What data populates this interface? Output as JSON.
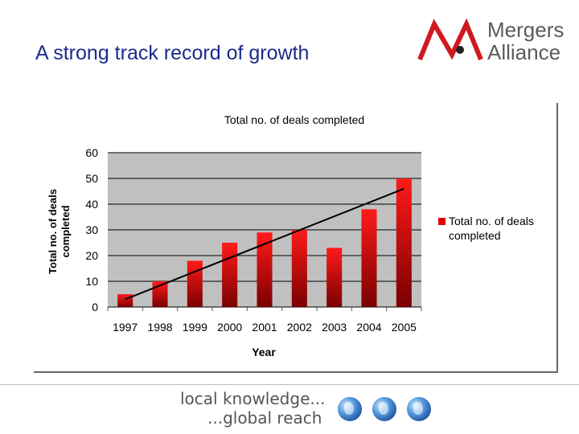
{
  "slide": {
    "title": "A strong track record of growth"
  },
  "logo": {
    "line1": "Mergers",
    "line2": "Alliance"
  },
  "footer": {
    "line1": "local knowledge...",
    "line2": "...global reach",
    "globe_icons": [
      "globe-europe-icon",
      "globe-americas-icon",
      "globe-asia-icon"
    ]
  },
  "colors": {
    "title": "#1c2b8c",
    "bar_top": "#ff1a1a",
    "bar_bottom": "#7a0000",
    "plot_bg": "#c0c0c0",
    "logo_red": "#d0191f"
  },
  "chart_data": {
    "type": "bar",
    "title": "Total no. of deals completed",
    "xlabel": "Year",
    "ylabel": "Total no. of deals completed",
    "ylabel_lines": [
      "Total no. of deals",
      "completed"
    ],
    "categories": [
      "1997",
      "1998",
      "1999",
      "2000",
      "2001",
      "2002",
      "2003",
      "2004",
      "2005"
    ],
    "series": [
      {
        "name": "Total no. of deals completed",
        "values": [
          5,
          10,
          18,
          25,
          29,
          30,
          23,
          38,
          50
        ]
      }
    ],
    "legend_lines": [
      "Total no. of deals",
      "completed"
    ],
    "legend_position": "right",
    "ylim": [
      0,
      60
    ],
    "yticks": [
      0,
      10,
      20,
      30,
      40,
      50,
      60
    ],
    "trendline": {
      "type": "linear",
      "from": 3,
      "to": 46
    },
    "grid": true
  }
}
